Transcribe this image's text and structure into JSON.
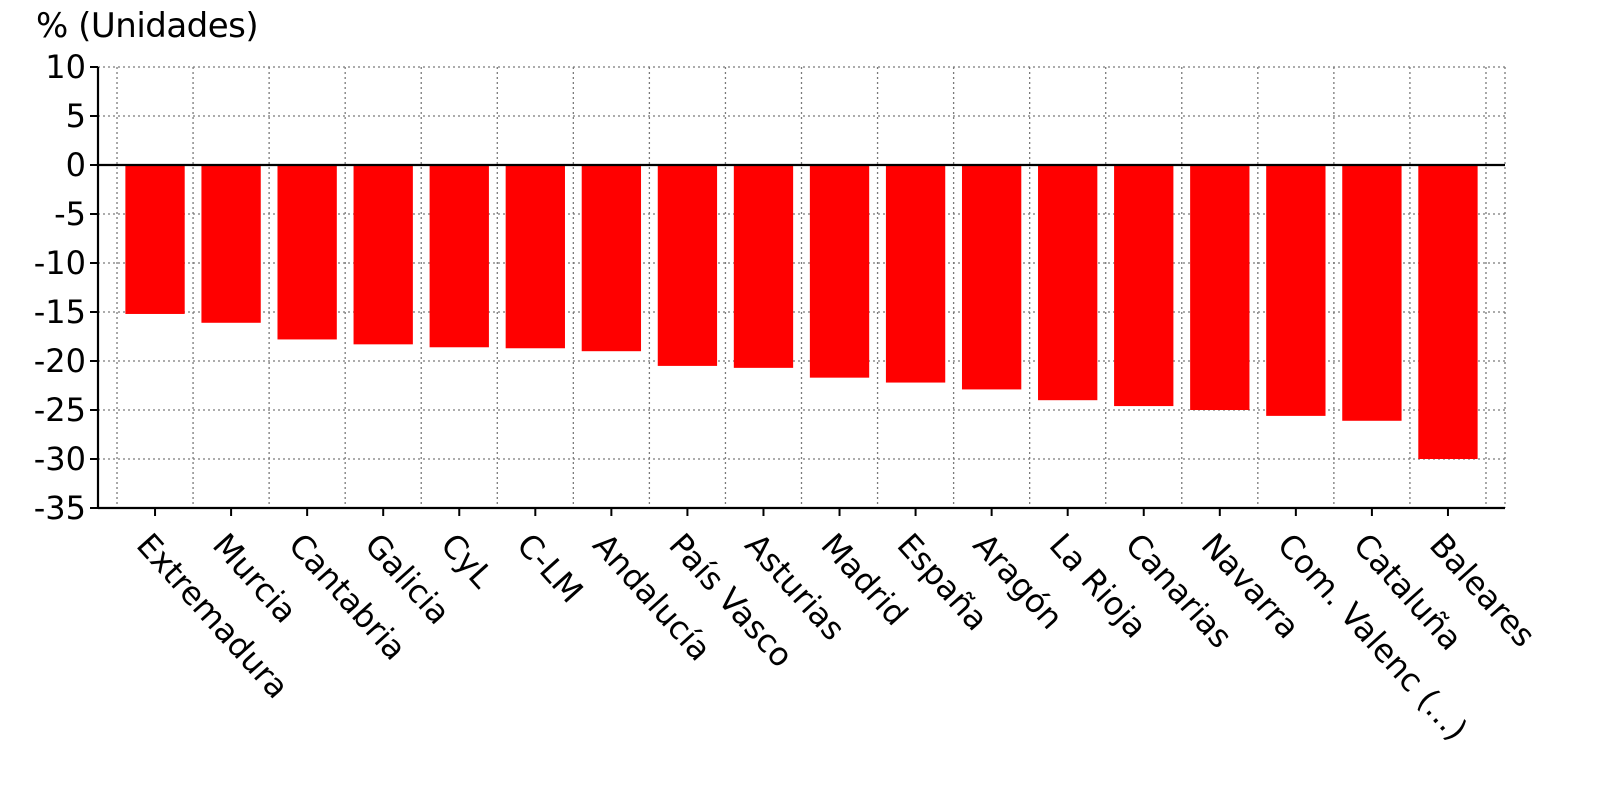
{
  "chart_data": {
    "type": "bar",
    "title": "",
    "ylabel": "% (Unidades)",
    "xlabel": "",
    "ylim": [
      -35,
      10
    ],
    "ytick_step": 5,
    "yticks": [
      10,
      5,
      0,
      -5,
      -10,
      -15,
      -20,
      -25,
      -30,
      -35
    ],
    "grid": true,
    "bar_color": "#ff0000",
    "categories": [
      "Extremadura",
      "Murcia",
      "Cantabria",
      "Galicia",
      "CyL",
      "C-LM",
      "Andalucía",
      "País Vasco",
      "Asturias",
      "Madrid",
      "España",
      "Aragón",
      "La Rioja",
      "Canarias",
      "Navarra",
      "Com. Valenc (...)",
      "Cataluña",
      "Baleares"
    ],
    "values": [
      -15.2,
      -16.1,
      -17.8,
      -18.3,
      -18.6,
      -18.7,
      -19.0,
      -20.5,
      -20.7,
      -21.7,
      -22.2,
      -22.9,
      -24.0,
      -24.6,
      -25.0,
      -25.6,
      -26.1,
      -30.0
    ]
  }
}
